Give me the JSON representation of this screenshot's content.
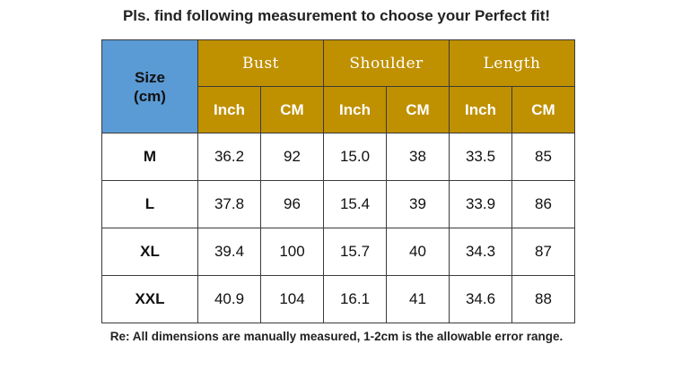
{
  "title": "Pls. find following measurement to choose your Perfect fit!",
  "table": {
    "size_header": [
      "Size",
      "(cm)"
    ],
    "groups": [
      "Bust",
      "Shoulder",
      "Length"
    ],
    "units": [
      "Inch",
      "CM",
      "Inch",
      "CM",
      "Inch",
      "CM"
    ],
    "rows": [
      {
        "size": "M",
        "values": [
          "36.2",
          "92",
          "15.0",
          "38",
          "33.5",
          "85"
        ]
      },
      {
        "size": "L",
        "values": [
          "37.8",
          "96",
          "15.4",
          "39",
          "33.9",
          "86"
        ]
      },
      {
        "size": "XL",
        "values": [
          "39.4",
          "100",
          "15.7",
          "40",
          "34.3",
          "87"
        ]
      },
      {
        "size": "XXL",
        "values": [
          "40.9",
          "104",
          "16.1",
          "41",
          "34.6",
          "88"
        ]
      }
    ]
  },
  "note": "Re: All dimensions are manually measured, 1-2cm is the allowable error range.",
  "colors": {
    "size_header_bg": "#5b9bd5",
    "group_header_bg": "#bf9000",
    "grid_line": "#3a3a3a"
  }
}
